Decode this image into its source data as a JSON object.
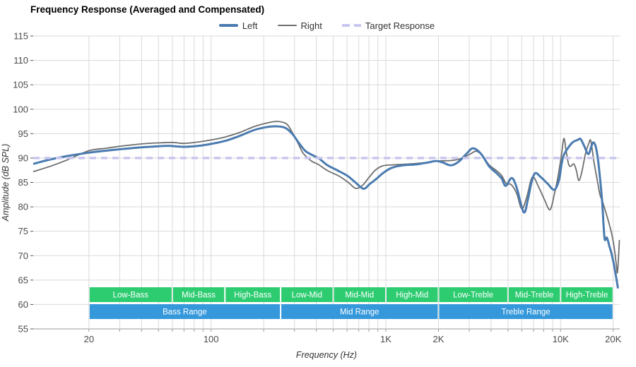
{
  "title": "Frequency Response (Averaged and Compensated)",
  "legend": [
    {
      "id": "left",
      "label": "Left",
      "color": "#4a7bb0",
      "style": "solid",
      "thickness": 4
    },
    {
      "id": "right",
      "label": "Right",
      "color": "#6e6e6e",
      "style": "solid",
      "thickness": 2
    },
    {
      "id": "target",
      "label": "Target Response",
      "color": "#c9c6f0",
      "style": "dashed",
      "thickness": 4
    }
  ],
  "colors": {
    "left_curve": "#4a7bb0",
    "right_curve": "#6e6e6e",
    "target_line": "#c9c6f0",
    "band_green": "#2ecc71",
    "band_blue": "#3498db",
    "band_text": "#ffffff",
    "grid": "#d9d9d9",
    "axis_line": "#999999",
    "tick_text": "#4a4a4a",
    "axis_title_text": "#333333"
  },
  "chart_data": {
    "type": "line",
    "title": "Frequency Response (Averaged and Compensated)",
    "xlabel": "Frequency (Hz)",
    "ylabel": "Amplitude (dB SPL)",
    "x_scale": "log",
    "x_range": [
      9.6,
      21800
    ],
    "y_range": [
      55,
      115
    ],
    "grid": true,
    "legend_position": "top-center",
    "y_ticks": [
      55,
      60,
      65,
      70,
      75,
      80,
      85,
      90,
      95,
      100,
      105,
      110,
      115
    ],
    "x_ticks": [
      {
        "f": 20,
        "label": "20"
      },
      {
        "f": 30,
        "label": ""
      },
      {
        "f": 40,
        "label": ""
      },
      {
        "f": 50,
        "label": ""
      },
      {
        "f": 60,
        "label": ""
      },
      {
        "f": 70,
        "label": ""
      },
      {
        "f": 80,
        "label": ""
      },
      {
        "f": 90,
        "label": ""
      },
      {
        "f": 100,
        "label": "100"
      },
      {
        "f": 200,
        "label": ""
      },
      {
        "f": 300,
        "label": ""
      },
      {
        "f": 400,
        "label": ""
      },
      {
        "f": 500,
        "label": ""
      },
      {
        "f": 600,
        "label": ""
      },
      {
        "f": 700,
        "label": ""
      },
      {
        "f": 800,
        "label": ""
      },
      {
        "f": 900,
        "label": ""
      },
      {
        "f": 1000,
        "label": "1K"
      },
      {
        "f": 2000,
        "label": "2K"
      },
      {
        "f": 3000,
        "label": ""
      },
      {
        "f": 4000,
        "label": ""
      },
      {
        "f": 5000,
        "label": ""
      },
      {
        "f": 6000,
        "label": ""
      },
      {
        "f": 7000,
        "label": ""
      },
      {
        "f": 8000,
        "label": ""
      },
      {
        "f": 9000,
        "label": ""
      },
      {
        "f": 10000,
        "label": "10K"
      },
      {
        "f": 20000,
        "label": "20K"
      }
    ],
    "target_db": 90,
    "series": [
      {
        "name": "Left",
        "points": [
          [
            9.6,
            88.8
          ],
          [
            12,
            89.7
          ],
          [
            15,
            90.4
          ],
          [
            20,
            91.1
          ],
          [
            25,
            91.5
          ],
          [
            30,
            91.8
          ],
          [
            40,
            92.2
          ],
          [
            50,
            92.4
          ],
          [
            57,
            92.5
          ],
          [
            70,
            92.3
          ],
          [
            85,
            92.5
          ],
          [
            100,
            92.9
          ],
          [
            120,
            93.5
          ],
          [
            145,
            94.5
          ],
          [
            175,
            95.7
          ],
          [
            205,
            96.3
          ],
          [
            235,
            96.5
          ],
          [
            265,
            96.2
          ],
          [
            291,
            95.0
          ],
          [
            315,
            93.3
          ],
          [
            345,
            91.5
          ],
          [
            380,
            90.6
          ],
          [
            415,
            89.9
          ],
          [
            460,
            88.6
          ],
          [
            520,
            87.6
          ],
          [
            600,
            86.4
          ],
          [
            670,
            85.0
          ],
          [
            745,
            83.7
          ],
          [
            810,
            84.7
          ],
          [
            880,
            85.7
          ],
          [
            970,
            87.0
          ],
          [
            1080,
            88.0
          ],
          [
            1250,
            88.5
          ],
          [
            1500,
            88.7
          ],
          [
            1750,
            89.1
          ],
          [
            1950,
            89.4
          ],
          [
            2150,
            89.0
          ],
          [
            2350,
            88.5
          ],
          [
            2600,
            89.2
          ],
          [
            2900,
            90.9
          ],
          [
            3150,
            92.0
          ],
          [
            3500,
            90.9
          ],
          [
            3900,
            88.3
          ],
          [
            4300,
            86.9
          ],
          [
            4600,
            85.8
          ],
          [
            4850,
            84.3
          ],
          [
            5250,
            85.9
          ],
          [
            5600,
            84.0
          ],
          [
            6150,
            78.9
          ],
          [
            6500,
            81.5
          ],
          [
            6800,
            84.9
          ],
          [
            7150,
            86.9
          ],
          [
            7700,
            86.1
          ],
          [
            8400,
            84.8
          ],
          [
            9200,
            83.5
          ],
          [
            9800,
            85.5
          ],
          [
            10100,
            88.5
          ],
          [
            10400,
            90.5
          ],
          [
            11000,
            92.0
          ],
          [
            11700,
            93.2
          ],
          [
            12500,
            93.7
          ],
          [
            13000,
            93.9
          ],
          [
            13600,
            92.6
          ],
          [
            14400,
            90.8
          ],
          [
            15000,
            92.4
          ],
          [
            15400,
            93.2
          ],
          [
            15900,
            92.3
          ],
          [
            16400,
            89.5
          ],
          [
            16900,
            85.0
          ],
          [
            17300,
            81.0
          ],
          [
            17600,
            76.5
          ],
          [
            17900,
            73.3
          ],
          [
            18400,
            73.7
          ],
          [
            19000,
            72.0
          ],
          [
            19600,
            70.3
          ],
          [
            20100,
            68.5
          ],
          [
            20700,
            66.0
          ],
          [
            21300,
            63.3
          ]
        ]
      },
      {
        "name": "Right",
        "points": [
          [
            9.6,
            87.2
          ],
          [
            12,
            88.3
          ],
          [
            15,
            89.6
          ],
          [
            20,
            91.5
          ],
          [
            25,
            92.0
          ],
          [
            30,
            92.4
          ],
          [
            40,
            92.9
          ],
          [
            50,
            93.1
          ],
          [
            60,
            93.2
          ],
          [
            70,
            93.0
          ],
          [
            85,
            93.3
          ],
          [
            100,
            93.7
          ],
          [
            120,
            94.3
          ],
          [
            145,
            95.2
          ],
          [
            175,
            96.4
          ],
          [
            210,
            97.2
          ],
          [
            240,
            97.5
          ],
          [
            270,
            97.0
          ],
          [
            291,
            95.3
          ],
          [
            315,
            93.0
          ],
          [
            336,
            91.0
          ],
          [
            375,
            89.4
          ],
          [
            410,
            88.7
          ],
          [
            465,
            87.4
          ],
          [
            540,
            86.3
          ],
          [
            610,
            85.0
          ],
          [
            670,
            83.8
          ],
          [
            730,
            84.3
          ],
          [
            800,
            86.0
          ],
          [
            870,
            87.5
          ],
          [
            960,
            88.4
          ],
          [
            1100,
            88.6
          ],
          [
            1400,
            88.8
          ],
          [
            1700,
            89.1
          ],
          [
            2000,
            89.4
          ],
          [
            2400,
            89.5
          ],
          [
            2700,
            89.9
          ],
          [
            3000,
            90.7
          ],
          [
            3300,
            91.4
          ],
          [
            3600,
            90.3
          ],
          [
            3900,
            88.6
          ],
          [
            4300,
            87.4
          ],
          [
            4600,
            86.4
          ],
          [
            4900,
            84.7
          ],
          [
            5200,
            84.6
          ],
          [
            5600,
            82.8
          ],
          [
            6000,
            79.6
          ],
          [
            6400,
            82.0
          ],
          [
            6900,
            86.1
          ],
          [
            7500,
            84.0
          ],
          [
            8100,
            81.4
          ],
          [
            8700,
            79.4
          ],
          [
            9200,
            82.5
          ],
          [
            9700,
            86.5
          ],
          [
            10100,
            90.5
          ],
          [
            10450,
            94.0
          ],
          [
            10750,
            91.5
          ],
          [
            11100,
            88.8
          ],
          [
            11400,
            88.3
          ],
          [
            11900,
            88.8
          ],
          [
            12300,
            87.5
          ],
          [
            12700,
            85.4
          ],
          [
            13200,
            87.0
          ],
          [
            13900,
            91.0
          ],
          [
            14500,
            93.0
          ],
          [
            14900,
            93.5
          ],
          [
            15500,
            89.3
          ],
          [
            16200,
            85.5
          ],
          [
            16800,
            82.5
          ],
          [
            17400,
            81.0
          ],
          [
            18000,
            79.3
          ],
          [
            18800,
            77.0
          ],
          [
            19600,
            74.5
          ],
          [
            20300,
            71.5
          ],
          [
            20900,
            67.8
          ],
          [
            21200,
            66.8
          ],
          [
            21700,
            73.2
          ]
        ]
      },
      {
        "name": "Target Response",
        "points": [
          [
            9.6,
            90
          ],
          [
            21800,
            90
          ]
        ]
      }
    ],
    "bands": {
      "sub_bands": [
        {
          "label": "Low-Bass",
          "f1": 20,
          "f2": 60
        },
        {
          "label": "Mid-Bass",
          "f1": 60,
          "f2": 120
        },
        {
          "label": "High-Bass",
          "f1": 120,
          "f2": 250
        },
        {
          "label": "Low-Mid",
          "f1": 250,
          "f2": 500
        },
        {
          "label": "Mid-Mid",
          "f1": 500,
          "f2": 1000
        },
        {
          "label": "High-Mid",
          "f1": 1000,
          "f2": 2000
        },
        {
          "label": "Low-Treble",
          "f1": 2000,
          "f2": 5000
        },
        {
          "label": "Mid-Treble",
          "f1": 5000,
          "f2": 10000
        },
        {
          "label": "High-Treble",
          "f1": 10000,
          "f2": 20000
        }
      ],
      "main_bands": [
        {
          "label": "Bass Range",
          "f1": 20,
          "f2": 250
        },
        {
          "label": "Mid Range",
          "f1": 250,
          "f2": 2000
        },
        {
          "label": "Treble Range",
          "f1": 2000,
          "f2": 20000
        }
      ]
    }
  }
}
